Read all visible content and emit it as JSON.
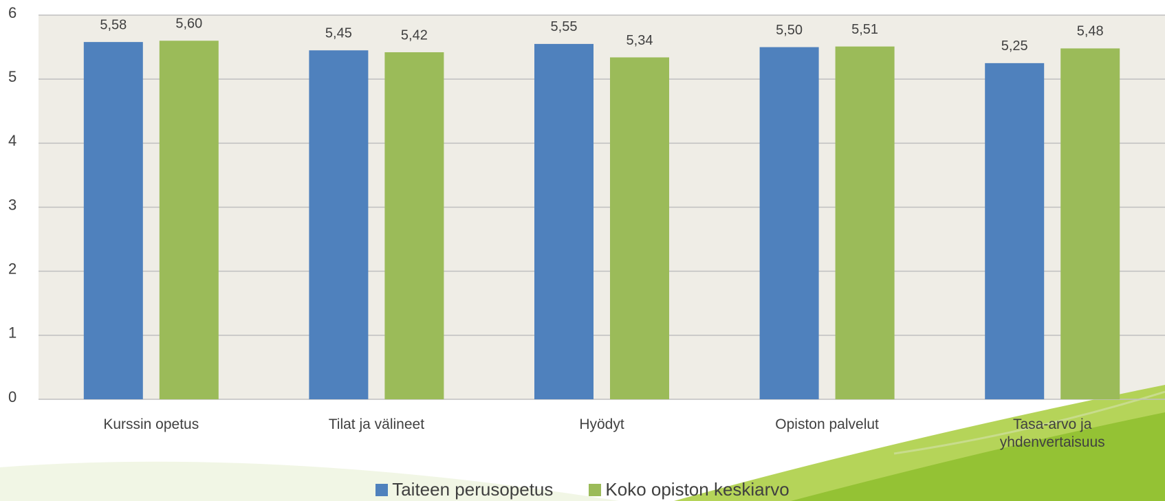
{
  "chart_data": {
    "type": "bar",
    "categories": [
      "Kurssin opetus",
      "Tilat ja välineet",
      "Hyödyt",
      "Opiston palvelut",
      "Tasa-arvo ja yhdenvertaisuus"
    ],
    "series": [
      {
        "name": "Taiteen perusopetus",
        "color": "#4f81bd",
        "values": [
          5.58,
          5.45,
          5.55,
          5.5,
          5.25
        ],
        "value_labels": [
          "5,58",
          "5,45",
          "5,55",
          "5,50",
          "5,25"
        ]
      },
      {
        "name": "Koko opiston keskiarvo",
        "color": "#9bbb59",
        "values": [
          5.6,
          5.42,
          5.34,
          5.51,
          5.48
        ],
        "value_labels": [
          "5,60",
          "5,42",
          "5,34",
          "5,51",
          "5,48"
        ]
      }
    ],
    "ylim": [
      0,
      6
    ],
    "yticks": [
      0,
      1,
      2,
      3,
      4,
      5,
      6
    ],
    "grid": true,
    "legend": "bottom"
  }
}
